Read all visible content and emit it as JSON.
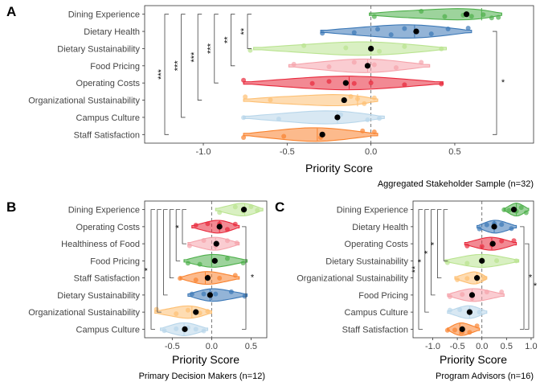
{
  "chart_data": [
    {
      "panel_label": "A",
      "type": "violin",
      "orientation": "horizontal",
      "xlabel": "Priority Score",
      "caption": "Aggregated Stakeholder Sample (n=32)",
      "xlim": [
        -1.35,
        0.97
      ],
      "xticks": [
        -1.0,
        -0.5,
        0.0,
        0.5
      ],
      "xtick_labels": [
        "-1.0",
        "-0.5",
        "0.0",
        "0.5"
      ],
      "reference_line_x": 0,
      "categories": [
        "Dining Experience",
        "Dietary Health",
        "Dietary Sustainability",
        "Food Pricing",
        "Operating Costs",
        "Organizational Sustainability",
        "Campus Culture",
        "Staff Satisfaction"
      ],
      "colors": [
        "#4daf4a",
        "#3a77b6",
        "#b9e38f",
        "#f5a3ab",
        "#e8283b",
        "#fdbf72",
        "#b8d6ea",
        "#f9822d"
      ],
      "series": [
        {
          "category": "Dining Experience",
          "mean": 0.57,
          "min": -0.01,
          "max": 0.78,
          "median": 0.66,
          "points": [
            0.02,
            0.3,
            0.44,
            0.55,
            0.6,
            0.67,
            0.72,
            0.76
          ]
        },
        {
          "category": "Dietary Health",
          "mean": 0.27,
          "min": -0.3,
          "max": 0.6,
          "median": 0.26,
          "points": [
            -0.29,
            -0.1,
            0.04,
            0.12,
            0.2,
            0.36,
            0.46,
            0.58
          ]
        },
        {
          "category": "Dietary Sustainability",
          "mean": 0.0,
          "min": -0.7,
          "max": 0.45,
          "median": 0.0,
          "points": [
            -0.72,
            -0.4,
            -0.15,
            0.05,
            0.2,
            0.42
          ]
        },
        {
          "category": "Food Pricing",
          "mean": -0.02,
          "min": -0.49,
          "max": 0.35,
          "median": -0.02,
          "points": [
            -0.46,
            -0.25,
            -0.1,
            0.02,
            0.15,
            0.3
          ]
        },
        {
          "category": "Operating Costs",
          "mean": -0.15,
          "min": -0.76,
          "max": 0.43,
          "median": -0.13,
          "points": [
            -0.76,
            -0.35,
            -0.25,
            -0.1,
            0.0,
            0.2,
            0.42
          ]
        },
        {
          "category": "Organizational Sustainability",
          "mean": -0.16,
          "min": -0.76,
          "max": 0.04,
          "median": -0.08,
          "points": [
            -0.75,
            -0.6,
            -0.12,
            -0.08,
            -0.04,
            0.02
          ]
        },
        {
          "category": "Campus Culture",
          "mean": -0.2,
          "min": -0.76,
          "max": 0.08,
          "median": -0.2,
          "points": [
            -0.76,
            -0.55,
            -0.18,
            -0.02,
            0.05
          ]
        },
        {
          "category": "Staff Satisfaction",
          "mean": -0.29,
          "min": -0.76,
          "max": 0.04,
          "median": -0.32,
          "points": [
            -0.76,
            -0.52,
            -0.3,
            -0.05,
            0.02
          ]
        }
      ],
      "comparisons": [
        {
          "from": "Dining Experience",
          "to": "Staff Satisfaction",
          "label": "***",
          "side": "left"
        },
        {
          "from": "Dining Experience",
          "to": "Campus Culture",
          "label": "***",
          "side": "left"
        },
        {
          "from": "Dining Experience",
          "to": "Organizational Sustainability",
          "label": "***",
          "side": "left"
        },
        {
          "from": "Dining Experience",
          "to": "Operating Costs",
          "label": "***",
          "side": "left"
        },
        {
          "from": "Dining Experience",
          "to": "Food Pricing",
          "label": "**",
          "side": "left"
        },
        {
          "from": "Dining Experience",
          "to": "Dietary Sustainability",
          "label": "**",
          "side": "left"
        },
        {
          "from": "Dietary Health",
          "to": "Staff Satisfaction",
          "label": "*",
          "side": "right"
        }
      ]
    },
    {
      "panel_label": "B",
      "type": "violin",
      "orientation": "horizontal",
      "xlabel": "Priority Score",
      "caption": "Primary Decision Makers (n=12)",
      "xlim": [
        -0.85,
        0.7
      ],
      "xticks": [
        -0.5,
        0.0,
        0.5
      ],
      "xtick_labels": [
        "-0.5",
        "0.0",
        "0.5"
      ],
      "reference_line_x": 0,
      "categories": [
        "Dining Experience",
        "Operating Costs",
        "Healthiness of Food",
        "Food Pricing",
        "Staff Satisfaction",
        "Dietary Sustainability",
        "Organizational Sustainability",
        "Campus Culture"
      ],
      "colors": [
        "#b9e38f",
        "#e8283b",
        "#f5a3ab",
        "#4daf4a",
        "#f9822d",
        "#3a77b6",
        "#fdbf72",
        "#b8d6ea"
      ],
      "series": [
        {
          "category": "Dining Experience",
          "mean": 0.41,
          "min": 0.05,
          "max": 0.65,
          "median": 0.42,
          "points": [
            0.1,
            0.3,
            0.4,
            0.5,
            0.58
          ]
        },
        {
          "category": "Operating Costs",
          "mean": 0.1,
          "min": -0.25,
          "max": 0.35,
          "median": 0.1,
          "points": [
            -0.2,
            -0.05,
            0.1,
            0.2,
            0.3
          ]
        },
        {
          "category": "Healthiness of Food",
          "mean": 0.06,
          "min": -0.3,
          "max": 0.35,
          "median": 0.05,
          "points": [
            -0.28,
            -0.1,
            0.05,
            0.2,
            0.32
          ]
        },
        {
          "category": "Food Pricing",
          "mean": 0.04,
          "min": -0.35,
          "max": 0.45,
          "median": 0.0,
          "points": [
            -0.3,
            -0.15,
            0.05,
            0.2,
            0.4
          ]
        },
        {
          "category": "Staff Satisfaction",
          "mean": -0.05,
          "min": -0.4,
          "max": 0.35,
          "median": -0.08,
          "points": [
            -0.4,
            -0.2,
            -0.05,
            0.1,
            0.3
          ]
        },
        {
          "category": "Dietary Sustainability",
          "mean": -0.02,
          "min": -0.3,
          "max": 0.45,
          "median": -0.02,
          "points": [
            -0.25,
            -0.1,
            0.05,
            0.25,
            0.42
          ]
        },
        {
          "category": "Organizational Sustainability",
          "mean": -0.2,
          "min": -0.72,
          "max": 0.0,
          "median": -0.25,
          "points": [
            -0.7,
            -0.45,
            -0.3,
            -0.15,
            -0.05
          ]
        },
        {
          "category": "Campus Culture",
          "mean": -0.34,
          "min": -0.65,
          "max": -0.05,
          "median": -0.35,
          "points": [
            -0.6,
            -0.45,
            -0.3,
            -0.2,
            -0.1
          ]
        }
      ],
      "comparisons": [
        {
          "from": "Dining Experience",
          "to": "Campus Culture",
          "label": "*",
          "side": "left"
        },
        {
          "from": "Dining Experience",
          "to": "Organizational Sustainability",
          "label": "",
          "side": "left"
        },
        {
          "from": "Dining Experience",
          "to": "Dietary Sustainability",
          "label": "",
          "side": "left"
        },
        {
          "from": "Dining Experience",
          "to": "Staff Satisfaction",
          "label": "",
          "side": "left"
        },
        {
          "from": "Dining Experience",
          "to": "Food Pricing",
          "label": "",
          "side": "left"
        },
        {
          "from": "Dining Experience",
          "to": "Healthiness of Food",
          "label": "*",
          "side": "left"
        },
        {
          "from": "Operating Costs",
          "to": "Campus Culture",
          "label": "*",
          "side": "right"
        }
      ]
    },
    {
      "panel_label": "C",
      "type": "violin",
      "orientation": "horizontal",
      "xlabel": "Priority Score",
      "caption": "Program Advisors (n=16)",
      "xlim": [
        -1.4,
        1.05
      ],
      "xticks": [
        -1.0,
        -0.5,
        0.0,
        0.5,
        1.0
      ],
      "xtick_labels": [
        "-1.0",
        "-0.5",
        "0.0",
        "0.5",
        "1.0"
      ],
      "reference_line_x": 0,
      "categories": [
        "Dining Experience",
        "Dietary Health",
        "Operating Costs",
        "Dietary Sustainability",
        "Organizational Sustainability",
        "Food Pricing",
        "Campus Culture",
        "Staff Satisfaction"
      ],
      "colors": [
        "#4daf4a",
        "#3a77b6",
        "#e8283b",
        "#b9e38f",
        "#fdbf72",
        "#f5a3ab",
        "#b8d6ea",
        "#f9822d"
      ],
      "series": [
        {
          "category": "Dining Experience",
          "mean": 0.65,
          "min": 0.45,
          "max": 0.95,
          "median": 0.7,
          "points": [
            0.45,
            0.55,
            0.7,
            0.8,
            0.9
          ]
        },
        {
          "category": "Dietary Health",
          "mean": 0.25,
          "min": -0.1,
          "max": 0.7,
          "median": 0.25,
          "points": [
            -0.05,
            0.1,
            0.25,
            0.4,
            0.6
          ]
        },
        {
          "category": "Operating Costs",
          "mean": 0.22,
          "min": -0.35,
          "max": 0.7,
          "median": 0.2,
          "points": [
            -0.3,
            0.0,
            0.2,
            0.4,
            0.65
          ]
        },
        {
          "category": "Dietary Sustainability",
          "mean": 0.0,
          "min": -0.75,
          "max": 0.75,
          "median": 0.0,
          "points": [
            -0.7,
            -0.3,
            0.0,
            0.3,
            0.7
          ]
        },
        {
          "category": "Organizational Sustainability",
          "mean": -0.1,
          "min": -0.55,
          "max": 0.1,
          "median": -0.1,
          "points": [
            -0.5,
            -0.3,
            -0.1,
            0.05
          ]
        },
        {
          "category": "Food Pricing",
          "mean": -0.2,
          "min": -0.7,
          "max": 0.45,
          "median": -0.2,
          "points": [
            -0.65,
            -0.4,
            -0.2,
            0.1,
            0.4
          ]
        },
        {
          "category": "Campus Culture",
          "mean": -0.25,
          "min": -0.7,
          "max": 0.1,
          "median": -0.25,
          "points": [
            -0.65,
            -0.45,
            -0.25,
            -0.05
          ]
        },
        {
          "category": "Staff Satisfaction",
          "mean": -0.4,
          "min": -0.7,
          "max": -0.05,
          "median": -0.45,
          "points": [
            -0.7,
            -0.55,
            -0.4,
            -0.25,
            -0.1
          ]
        }
      ],
      "comparisons": [
        {
          "from": "Dining Experience",
          "to": "Staff Satisfaction",
          "label": "**",
          "side": "left"
        },
        {
          "from": "Dining Experience",
          "to": "Campus Culture",
          "label": "*",
          "side": "left"
        },
        {
          "from": "Dining Experience",
          "to": "Food Pricing",
          "label": "*",
          "side": "left"
        },
        {
          "from": "Dining Experience",
          "to": "Organizational Sustainability",
          "label": "*",
          "side": "left"
        },
        {
          "from": "Dining Experience",
          "to": "Dietary Sustainability",
          "label": "",
          "side": "left"
        },
        {
          "from": "Dietary Health",
          "to": "Staff Satisfaction",
          "label": "*",
          "side": "right"
        },
        {
          "from": "Operating Costs",
          "to": "Staff Satisfaction",
          "label": "*",
          "side": "right"
        }
      ]
    }
  ]
}
